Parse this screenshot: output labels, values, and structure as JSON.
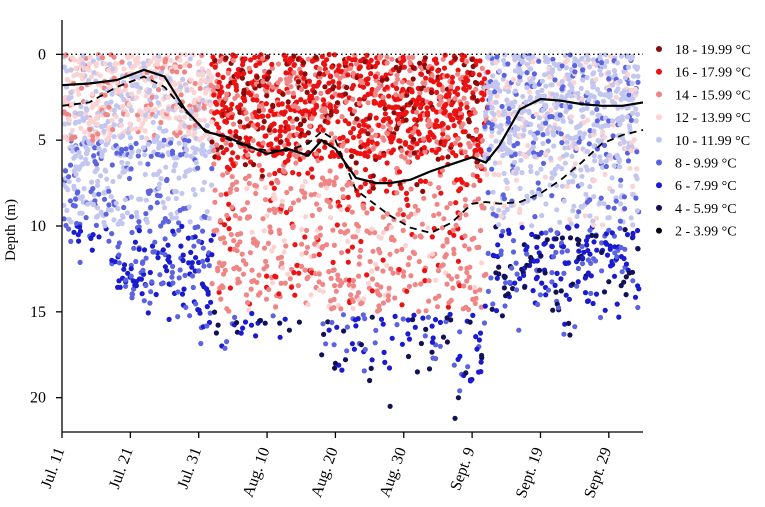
{
  "chart_data": {
    "type": "scatter",
    "title": "",
    "ylabel": "Depth (m)",
    "xlabel": "",
    "x_unit": "day",
    "x_range": [
      "Jul. 11",
      "Oct. 4"
    ],
    "ylim": [
      22,
      -2
    ],
    "y_inverted": true,
    "y_ticks": [
      0,
      5,
      10,
      15,
      20
    ],
    "x_ticks": [
      {
        "label": "Jul. 11",
        "day": 0
      },
      {
        "label": "Jul. 21",
        "day": 10
      },
      {
        "label": "Jul. 31",
        "day": 20
      },
      {
        "label": "Aug. 10",
        "day": 30
      },
      {
        "label": "Aug. 20",
        "day": 40
      },
      {
        "label": "Aug. 30",
        "day": 50
      },
      {
        "label": "Sept. 9",
        "day": 60
      },
      {
        "label": "Sept. 19",
        "day": 70
      },
      {
        "label": "Sept. 29",
        "day": 80
      }
    ],
    "reference_line": {
      "y": 0,
      "style": "dotted"
    },
    "legend_position": "right",
    "series": [
      {
        "name": "18 - 19.99 °C",
        "color": "#8b0a0a"
      },
      {
        "name": "16 - 17.99 °C",
        "color": "#ee1111"
      },
      {
        "name": "14 - 15.99 °C",
        "color": "#f08585"
      },
      {
        "name": "12 - 13.99 °C",
        "color": "#fbd3d3"
      },
      {
        "name": "10 - 11.99 °C",
        "color": "#c3c6ee"
      },
      {
        "name": "8 - 9.99 °C",
        "color": "#5b63e0"
      },
      {
        "name": "6 - 7.99 °C",
        "color": "#1a1ad0"
      },
      {
        "name": "4 - 5.99 °C",
        "color": "#111155"
      },
      {
        "name": "2 - 3.99 °C",
        "color": "#05051a"
      }
    ],
    "solid_line": {
      "x": [
        0,
        4,
        8,
        12,
        15,
        18,
        21,
        24,
        27,
        30,
        33,
        36,
        38,
        40,
        43,
        46,
        48,
        51,
        54,
        57,
        60,
        62,
        64,
        67,
        70,
        73,
        76,
        79,
        82,
        85
      ],
      "y": [
        1.8,
        1.7,
        1.5,
        0.9,
        1.3,
        3.2,
        4.5,
        4.8,
        5.3,
        5.8,
        5.5,
        5.9,
        5.0,
        5.5,
        7.2,
        7.5,
        7.5,
        7.3,
        6.8,
        6.4,
        6.0,
        6.3,
        5.3,
        3.2,
        2.6,
        2.7,
        2.9,
        3.0,
        3.0,
        2.8
      ],
      "color": "#000000",
      "style": "solid"
    },
    "dashed_line": {
      "x": [
        0,
        4,
        8,
        12,
        15,
        18,
        21,
        24,
        27,
        30,
        33,
        36,
        38,
        40,
        43,
        46,
        48,
        51,
        54,
        57,
        60,
        62,
        64,
        67,
        70,
        73,
        76,
        79,
        82,
        85
      ],
      "y": [
        3.0,
        2.8,
        1.9,
        1.3,
        1.9,
        3.3,
        4.4,
        4.9,
        5.4,
        5.6,
        5.6,
        5.2,
        4.5,
        5.0,
        7.9,
        8.8,
        9.4,
        10.1,
        10.4,
        9.8,
        8.7,
        8.6,
        8.7,
        8.6,
        8.1,
        7.3,
        6.3,
        5.2,
        4.7,
        4.4
      ],
      "color": "#000000",
      "style": "dashed"
    }
  }
}
